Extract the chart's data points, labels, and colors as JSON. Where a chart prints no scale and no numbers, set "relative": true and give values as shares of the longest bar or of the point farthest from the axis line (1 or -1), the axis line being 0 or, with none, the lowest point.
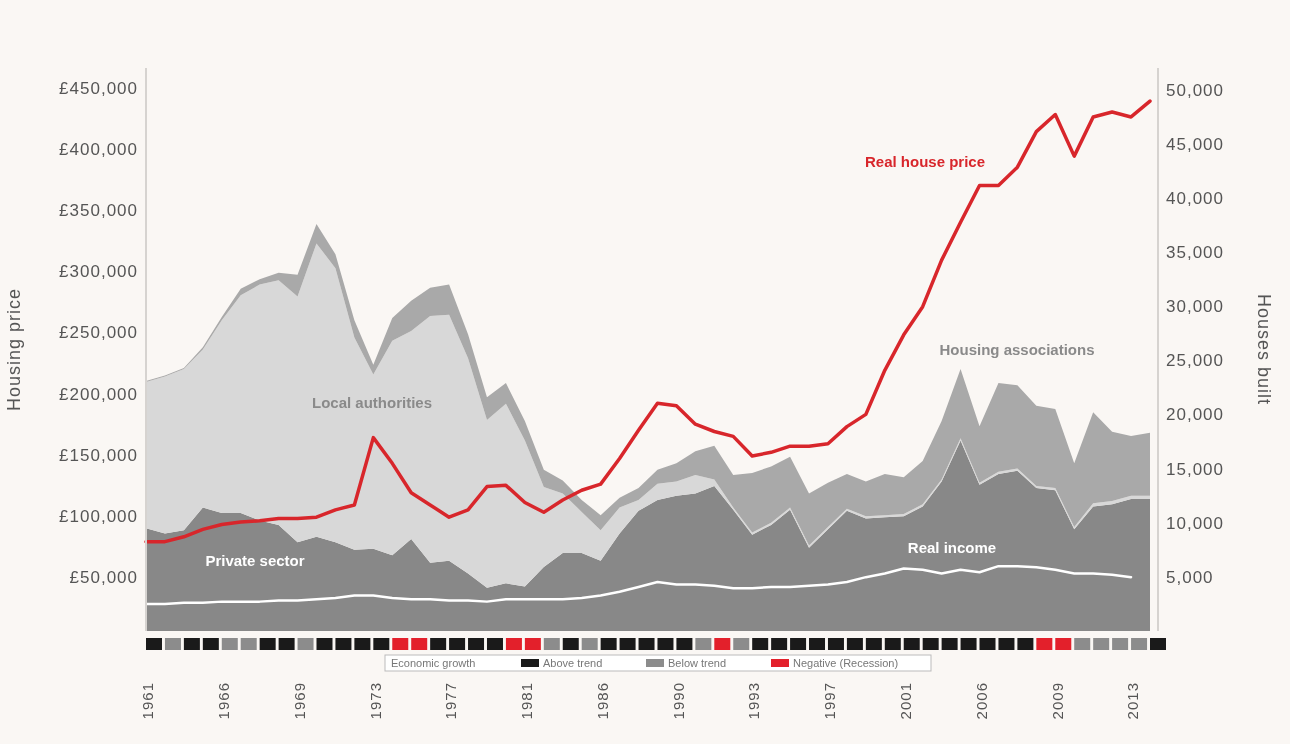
{
  "chart_data": [
    {
      "type": "area",
      "stacked": true,
      "ylabel": "Housing price",
      "y2label": "Houses built",
      "categories": [
        "1961",
        null,
        null,
        null,
        "1966",
        null,
        null,
        null,
        "1969",
        null,
        null,
        null,
        "1973",
        null,
        null,
        null,
        "1977",
        null,
        null,
        null,
        "1981",
        null,
        null,
        null,
        "1986",
        null,
        null,
        null,
        "1990",
        null,
        null,
        null,
        "1993",
        null,
        null,
        null,
        "1997",
        null,
        null,
        null,
        "2001",
        null,
        null,
        null,
        "2006",
        null,
        null,
        null,
        "2009",
        null,
        null,
        null,
        "2013",
        null
      ],
      "ylim": [
        6000,
        466000
      ],
      "yticks": [
        {
          "value": 50000,
          "label": "£50,000"
        },
        {
          "value": 100000,
          "label": "£100,000"
        },
        {
          "value": 150000,
          "label": "£150,000"
        },
        {
          "value": 200000,
          "label": "£200,000"
        },
        {
          "value": 250000,
          "label": "£250,000"
        },
        {
          "value": 300000,
          "label": "£300,000"
        },
        {
          "value": 350000,
          "label": "£350,000"
        },
        {
          "value": 400000,
          "label": "£400,000"
        },
        {
          "value": 450000,
          "label": "£450,000"
        }
      ],
      "y2lim": [
        0,
        52000
      ],
      "y2ticks": [
        {
          "value": 5000,
          "label": "5,000"
        },
        {
          "value": 10000,
          "label": "10,000"
        },
        {
          "value": 15000,
          "label": "15,000"
        },
        {
          "value": 20000,
          "label": "20,000"
        },
        {
          "value": 25000,
          "label": "25,000"
        },
        {
          "value": 30000,
          "label": "30,000"
        },
        {
          "value": 35000,
          "label": "35,000"
        },
        {
          "value": 40000,
          "label": "40,000"
        },
        {
          "value": 45000,
          "label": "45,000"
        },
        {
          "value": 50000,
          "label": "50,000"
        }
      ],
      "series": [
        {
          "name": "Private sector",
          "type": "area",
          "axis": "y2",
          "color": "#888888",
          "values": [
            9500,
            9000,
            9300,
            11400,
            10900,
            10900,
            10200,
            9800,
            8200,
            8700,
            8200,
            7500,
            7600,
            7000,
            8500,
            6300,
            6500,
            5300,
            4000,
            4400,
            4100,
            5900,
            7200,
            7200,
            6500,
            9000,
            11100,
            12100,
            12500,
            12700,
            13400,
            11200,
            8900,
            9800,
            11200,
            7700,
            9400,
            11100,
            10400,
            10500,
            10600,
            11500,
            13800,
            17600,
            13500,
            14500,
            14800,
            13200,
            13000,
            9400,
            11500,
            11700,
            12200,
            12200
          ]
        },
        {
          "name": "Local authorities",
          "type": "area",
          "axis": "y2",
          "color": "#d8d8d8",
          "values": [
            13500,
            14500,
            14900,
            14600,
            17800,
            20100,
            21800,
            22600,
            22700,
            27100,
            25300,
            19600,
            16100,
            19800,
            19200,
            22800,
            22700,
            19900,
            15500,
            16600,
            13500,
            7400,
            5500,
            3800,
            2800,
            2400,
            1000,
            1500,
            1300,
            1700,
            600,
            200,
            200,
            200,
            200,
            200,
            200,
            200,
            200,
            200,
            200,
            200,
            200,
            200,
            200,
            200,
            200,
            200,
            200,
            200,
            300,
            300,
            300,
            300
          ]
        },
        {
          "name": "Housing associations",
          "type": "area",
          "axis": "y2",
          "color": "#a9a9a9",
          "values": [
            100,
            100,
            100,
            200,
            300,
            600,
            500,
            700,
            2000,
            1800,
            1300,
            1600,
            900,
            2100,
            2800,
            2600,
            2800,
            2200,
            2100,
            1900,
            1800,
            1600,
            1200,
            1100,
            1400,
            900,
            1100,
            1300,
            1700,
            2200,
            3100,
            3000,
            5500,
            5200,
            4700,
            4800,
            4100,
            3200,
            3200,
            3800,
            3400,
            4000,
            5400,
            6400,
            5200,
            8200,
            7700,
            7400,
            7300,
            5900,
            8400,
            6400,
            5500,
            5800
          ]
        },
        {
          "name": "Real house price",
          "type": "line",
          "axis": "y",
          "color": "#d8262b",
          "values": [
            79000,
            79000,
            83000,
            89000,
            93000,
            95000,
            96000,
            98000,
            98000,
            99000,
            105000,
            109000,
            164000,
            143000,
            119000,
            109000,
            99000,
            105000,
            124000,
            125000,
            111000,
            103000,
            113000,
            121000,
            126000,
            147000,
            170000,
            192000,
            190000,
            175000,
            169000,
            165000,
            149000,
            152000,
            157000,
            157000,
            159000,
            173000,
            183000,
            219000,
            248000,
            271000,
            309000,
            340000,
            370000,
            370000,
            385000,
            414000,
            428000,
            394000,
            426000,
            430000,
            426000,
            439000
          ]
        },
        {
          "name": "Real income",
          "type": "line",
          "axis": "y",
          "color": "#ffffff",
          "values": [
            28000,
            28000,
            29000,
            29000,
            30000,
            30000,
            30000,
            31000,
            31000,
            32000,
            33000,
            35000,
            35000,
            33000,
            32000,
            32000,
            31000,
            31000,
            30000,
            32000,
            32000,
            32000,
            32000,
            33000,
            35000,
            38000,
            42000,
            46000,
            44000,
            44000,
            43000,
            41000,
            41000,
            42000,
            42000,
            43000,
            44000,
            46000,
            50000,
            53000,
            57000,
            56000,
            53000,
            56000,
            54000,
            59000,
            59000,
            58000,
            56000,
            53000,
            53000,
            52000,
            50000,
            null
          ]
        }
      ]
    },
    {
      "type": "bar",
      "relative": true,
      "legend": "bottom",
      "legend_title": "Economic growth",
      "series": [
        {
          "name": "Above trend",
          "color": "#1a1a1a",
          "values": [
            1,
            null,
            1,
            1,
            null,
            null,
            1,
            1,
            null,
            1,
            1,
            1,
            1,
            null,
            null,
            1,
            1,
            1,
            1,
            null,
            null,
            null,
            1,
            null,
            1,
            1,
            1,
            1,
            1,
            null,
            null,
            null,
            1,
            1,
            1,
            1,
            1,
            1,
            1,
            1,
            1,
            1,
            1,
            1,
            1,
            1,
            1,
            null,
            null,
            null,
            null,
            null,
            null,
            1
          ]
        },
        {
          "name": "Below trend",
          "color": "#8c8c8c",
          "values": [
            null,
            1,
            null,
            null,
            1,
            1,
            null,
            null,
            1,
            null,
            null,
            null,
            null,
            null,
            null,
            null,
            null,
            null,
            null,
            null,
            null,
            1,
            null,
            1,
            null,
            null,
            null,
            null,
            null,
            1,
            null,
            1,
            null,
            null,
            null,
            null,
            null,
            null,
            null,
            null,
            null,
            null,
            null,
            null,
            null,
            null,
            null,
            null,
            null,
            1,
            1,
            1,
            1,
            null
          ]
        },
        {
          "name": "Negative (Recession)",
          "color": "#e3202b",
          "values": [
            null,
            null,
            null,
            null,
            null,
            null,
            null,
            null,
            null,
            null,
            null,
            null,
            null,
            1,
            1,
            null,
            null,
            null,
            null,
            1,
            1,
            null,
            null,
            null,
            null,
            null,
            null,
            null,
            null,
            null,
            1,
            null,
            null,
            null,
            null,
            null,
            null,
            null,
            null,
            null,
            null,
            null,
            null,
            null,
            null,
            null,
            null,
            1,
            1,
            null,
            null,
            null,
            null,
            null
          ]
        }
      ]
    }
  ]
}
